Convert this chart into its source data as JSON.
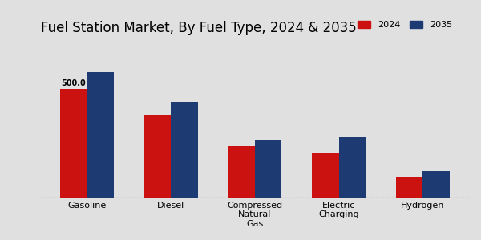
{
  "title": "Fuel Station Market, By Fuel Type, 2024 & 2035",
  "categories": [
    "Gasoline",
    "Diesel",
    "Compressed\nNatural\nGas",
    "Electric\nCharging",
    "Hydrogen"
  ],
  "values_2024": [
    500.0,
    380.0,
    235.0,
    205.0,
    95.0
  ],
  "values_2035": [
    575.0,
    440.0,
    265.0,
    280.0,
    120.0
  ],
  "color_2024": "#cc1111",
  "color_2035": "#1e3a72",
  "bar_annotation": "500.0",
  "bar_annotation_index": 0,
  "background_color": "#e0e0e0",
  "legend_labels": [
    "2024",
    "2035"
  ],
  "title_fontsize": 12,
  "axis_label_fontsize": 8,
  "tick_fontsize": 8,
  "bar_width": 0.32,
  "ylim": [
    0,
    720
  ]
}
